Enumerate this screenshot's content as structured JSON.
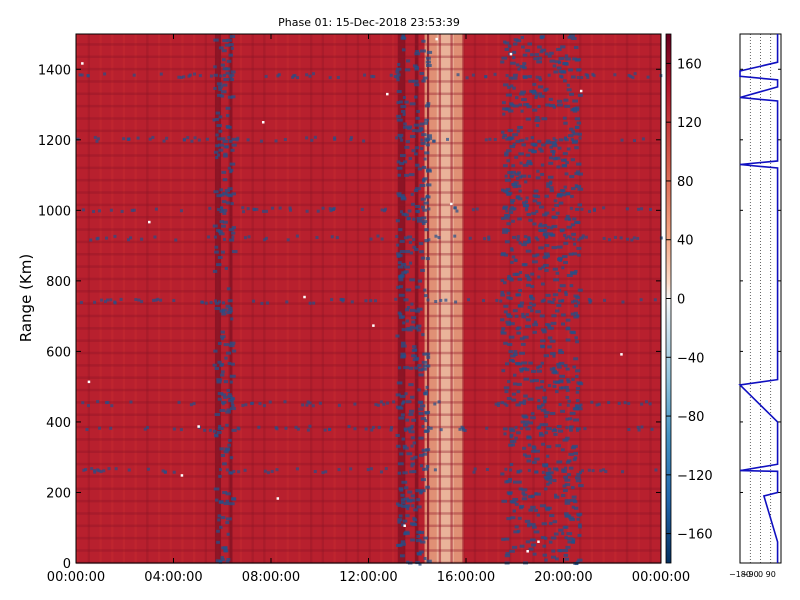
{
  "chart_data": [
    {
      "type": "heatmap",
      "title": "Phase 01: 15-Dec-2018 23:53:39",
      "ylabel": "Range (Km)",
      "xlabel": "",
      "x_ticks": [
        "00:00:00",
        "04:00:00",
        "08:00:00",
        "12:00:00",
        "16:00:00",
        "20:00:00",
        "00:00:00"
      ],
      "y_ticks": [
        "0",
        "200",
        "400",
        "600",
        "800",
        "1000",
        "1200",
        "1400"
      ],
      "ylim": [
        0,
        1500
      ],
      "xlim_hours": [
        0,
        24
      ],
      "colorbar": {
        "ticks": [
          "160",
          "120",
          "80",
          "40",
          "0",
          "−40",
          "−80",
          "−120",
          "−160"
        ],
        "range": [
          -180,
          180
        ],
        "colormap": "RdBu_r"
      },
      "colors": {
        "dominant": "#b8202e",
        "light_band": "#e09075",
        "blue_noise": "#23508a"
      },
      "features": {
        "light_band_hours": [
          14.3,
          15.9
        ],
        "blue_noise_band_hours": [
          [
            5.6,
            6.4
          ],
          [
            13.1,
            14.4
          ],
          [
            17.4,
            20.6
          ]
        ],
        "dominant_value": 150
      }
    },
    {
      "type": "line",
      "title": "",
      "x_ticks": [
        "−180",
        "−90",
        "0",
        "90"
      ],
      "xlim": [
        -180,
        180
      ],
      "ylim": [
        0,
        1500
      ],
      "series": [
        {
          "values_x": [
            150,
            150,
            30,
            150,
            150,
            150,
            -180,
            150,
            150,
            -180,
            150,
            150,
            150,
            150,
            150,
            150,
            150,
            150,
            150,
            -180,
            150,
            150,
            150,
            -180,
            150,
            150,
            -180,
            -180,
            150,
            150
          ],
          "values_y": [
            0,
            60,
            190,
            200,
            250,
            260,
            262,
            280,
            400,
            505,
            520,
            700,
            800,
            900,
            1000,
            1050,
            1100,
            1110,
            1120,
            1130,
            1140,
            1200,
            1310,
            1320,
            1350,
            1370,
            1380,
            1395,
            1420,
            1500
          ]
        }
      ]
    }
  ]
}
